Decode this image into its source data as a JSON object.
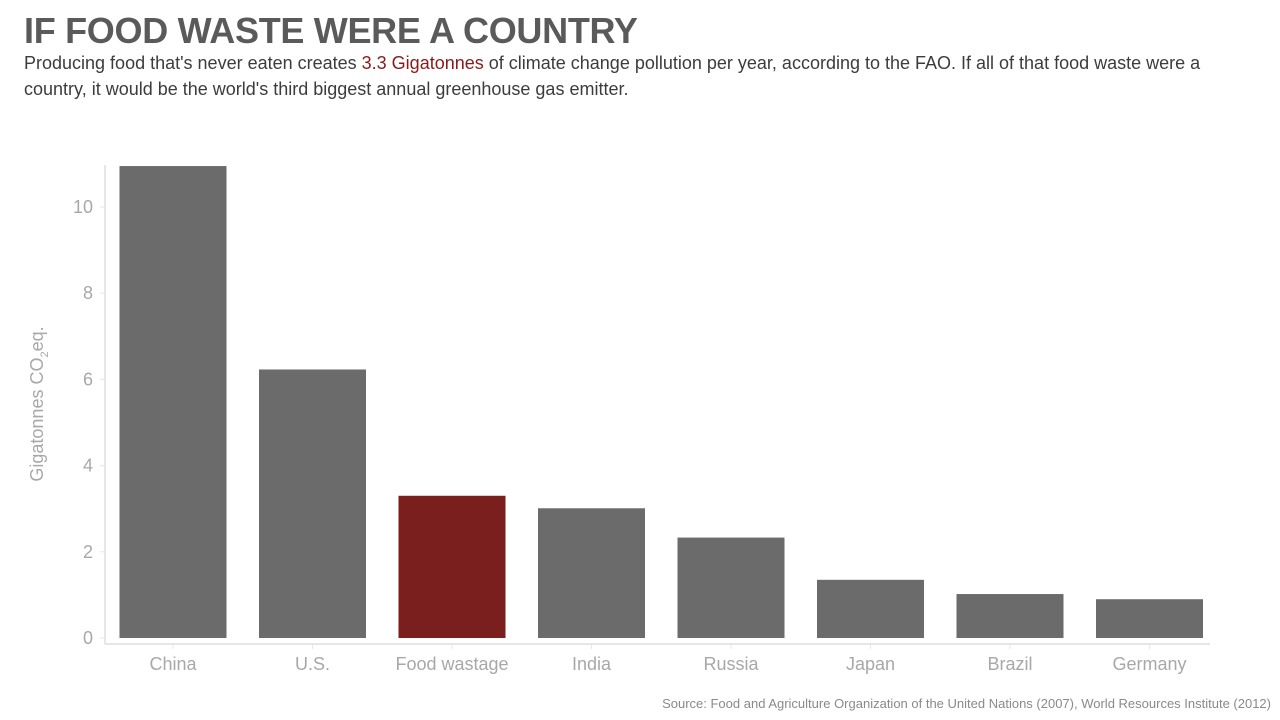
{
  "title": "IF FOOD WASTE WERE A COUNTRY",
  "subtitle": {
    "before": "Producing food that's never eaten creates ",
    "highlight": "3.3 Gigatonnes",
    "after": " of climate change pollution per year, according to the FAO. If all of that food waste were a country, it would be the world's third biggest annual greenhouse gas emitter."
  },
  "colors": {
    "bar": "#6b6b6b",
    "highlight_bar": "#7b1e1e",
    "highlight_text": "#8b1a1a",
    "axis_text": "#a8a8a8",
    "axis_line": "#e6e6e6"
  },
  "chart_data": {
    "type": "bar",
    "categories": [
      "China",
      "U.S.",
      "Food wastage",
      "India",
      "Russia",
      "Japan",
      "Brazil",
      "Germany"
    ],
    "values": [
      10.95,
      6.23,
      3.3,
      3.01,
      2.33,
      1.35,
      1.02,
      0.9
    ],
    "highlight_index": 2,
    "ylabel": "Gigatonnes CO₂eq.",
    "yticks": [
      0,
      2,
      4,
      6,
      8,
      10
    ],
    "ylim": [
      0,
      11
    ],
    "grid": false
  },
  "source": "Source: Food and Agriculture Organization of the United Nations (2007), World Resources Institute (2012)"
}
